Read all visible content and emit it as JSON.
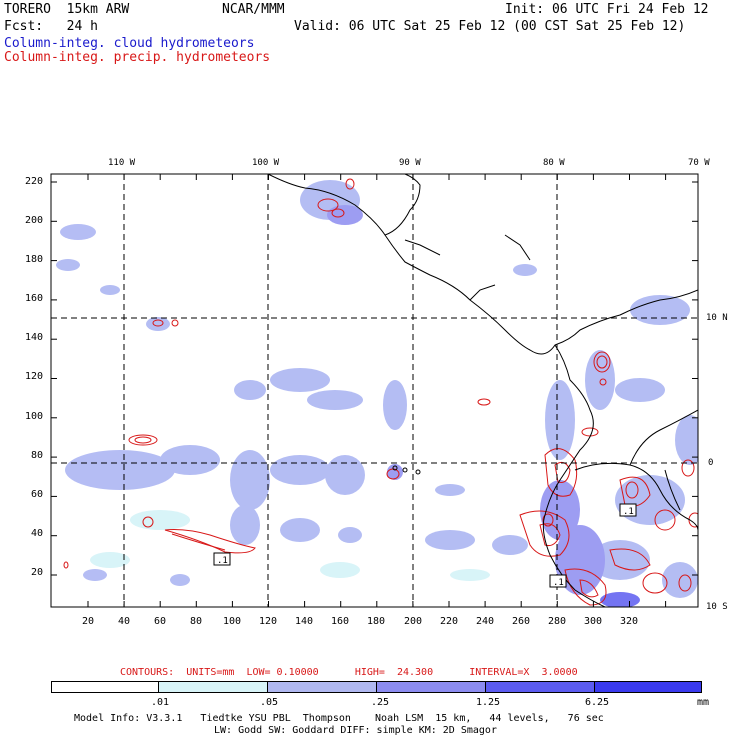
{
  "header": {
    "model": "TORERO  15km ARW",
    "org": "NCAR/MMM",
    "init": "Init: 06 UTC Fri 24 Feb 12",
    "fcst": "Fcst:   24 h",
    "valid": "Valid: 06 UTC Sat 25 Feb 12 (00 CST Sat 25 Feb 12)",
    "field1": "Column-integ. cloud hydrometeors",
    "field2": "Column-integ. precip. hydrometeors"
  },
  "map": {
    "lon_labels": [
      "110 W",
      "100 W",
      "90 W",
      "80 W",
      "70 W"
    ],
    "lat_labels": [
      "10 N",
      "0",
      "10 S"
    ],
    "y_ticks": [
      "220",
      "200",
      "180",
      "160",
      "140",
      "120",
      "100",
      "80",
      "60",
      "40",
      "20"
    ],
    "x_ticks": [
      "20",
      "40",
      "60",
      "80",
      "100",
      "120",
      "140",
      "160",
      "180",
      "200",
      "220",
      "240",
      "260",
      "280",
      "300",
      "320"
    ],
    "contour_labels": [
      ".1",
      ".1",
      ".1"
    ]
  },
  "contours": {
    "label": "CONTOURS:",
    "units": "UNITS=mm",
    "low": "LOW= 0.10000",
    "high": "HIGH=  24.300",
    "interval": "INTERVAL=X  3.0000"
  },
  "legend": {
    "thresholds": [
      ".01",
      ".05",
      ".25",
      "1.25",
      "6.25"
    ],
    "unit": "mm",
    "colors": [
      "#ffffff",
      "#d8f4f8",
      "#b0b8f0",
      "#8c8cf0",
      "#5c5cf0",
      "#3a3aee"
    ]
  },
  "footer": {
    "line1": "Model Info: V3.3.1   Tiedtke YSU PBL  Thompson    Noah LSM  15 km,   44 levels,   76 sec",
    "line2": "LW: Godd SW: Goddard DIFF: simple KM: 2D Smagor"
  }
}
